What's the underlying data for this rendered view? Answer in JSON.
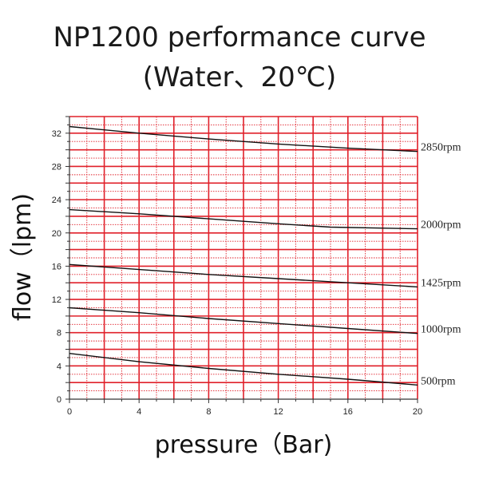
{
  "chart_data": {
    "type": "line",
    "title": "NP1200 performance curve",
    "subtitle": "(Water、20℃)",
    "xlabel": "pressure（Bar)",
    "ylabel": "flow（lpm)",
    "xlim": [
      0,
      20
    ],
    "ylim": [
      0,
      34
    ],
    "xticks": [
      0,
      4,
      8,
      12,
      16,
      20
    ],
    "yticks": [
      0,
      4,
      8,
      12,
      16,
      20,
      24,
      28,
      32
    ],
    "grid": true,
    "grid_color": "#e0202a",
    "line_color": "#111111",
    "series": [
      {
        "name": "2850rpm",
        "x": [
          0,
          4,
          8,
          12,
          16,
          20
        ],
        "y": [
          32.8,
          32.0,
          31.3,
          30.7,
          30.2,
          29.8
        ]
      },
      {
        "name": "2000rpm",
        "x": [
          0,
          4,
          8,
          12,
          15,
          20
        ],
        "y": [
          22.8,
          22.3,
          21.7,
          21.1,
          20.7,
          20.5
        ]
      },
      {
        "name": "1425rpm",
        "x": [
          0,
          4,
          8,
          12,
          16,
          20
        ],
        "y": [
          16.2,
          15.6,
          15.0,
          14.5,
          14.0,
          13.5
        ]
      },
      {
        "name": "1000rpm",
        "x": [
          0,
          4,
          8,
          12,
          16,
          20
        ],
        "y": [
          11.0,
          10.4,
          9.7,
          9.1,
          8.5,
          7.9
        ]
      },
      {
        "name": "500rpm",
        "x": [
          0,
          4,
          8,
          12,
          16,
          20
        ],
        "y": [
          5.5,
          4.5,
          3.7,
          3.0,
          2.4,
          1.7
        ]
      }
    ]
  }
}
